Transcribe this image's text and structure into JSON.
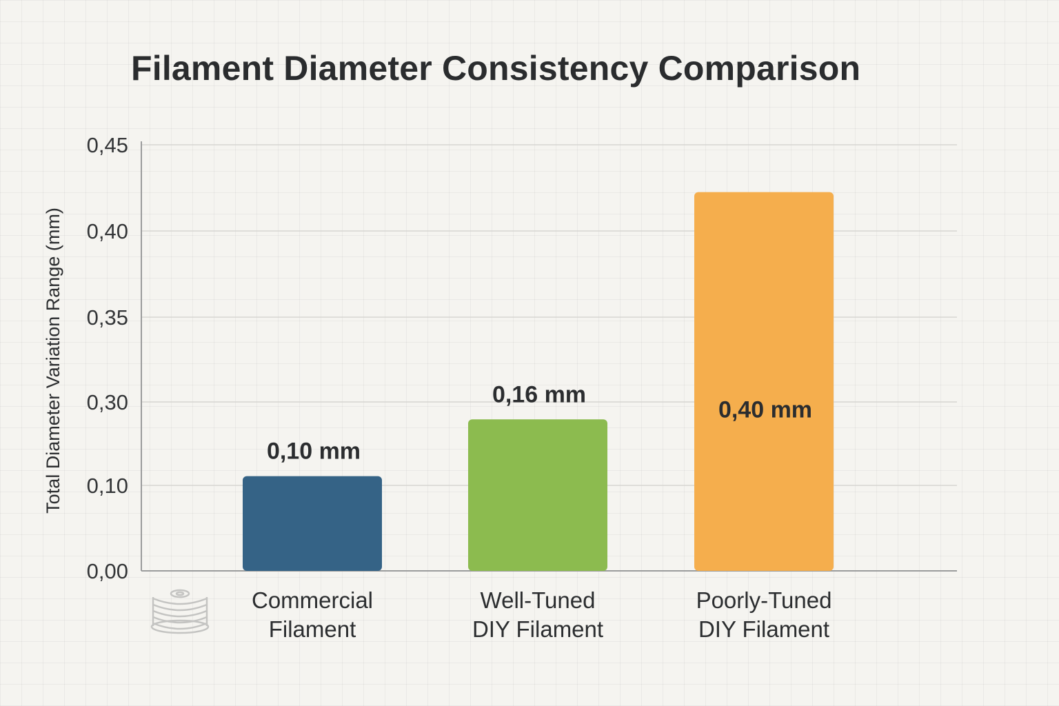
{
  "chart_data": {
    "type": "bar",
    "title": "Filament Diameter Consistency Comparison",
    "xlabel": "",
    "ylabel": "Total Diameter Variation Range (mm)",
    "categories": [
      [
        "Commercial",
        "Filament"
      ],
      [
        "Well-Tuned",
        "DIY Filament"
      ],
      [
        "Poorly-Tuned",
        "DIY Filament"
      ]
    ],
    "values": [
      0.1,
      0.16,
      0.4
    ],
    "data_labels": [
      "0,10 mm",
      "0,16 mm",
      "0,40 mm"
    ],
    "colors": [
      "#356386",
      "#8cbb4f",
      "#f5ae4d"
    ],
    "y_ticks": [
      "0,00",
      "0,10",
      "0,30",
      "0,35",
      "0,40",
      "0,45"
    ],
    "grid": true,
    "legend": "none",
    "icon": "filament-spool-icon"
  }
}
